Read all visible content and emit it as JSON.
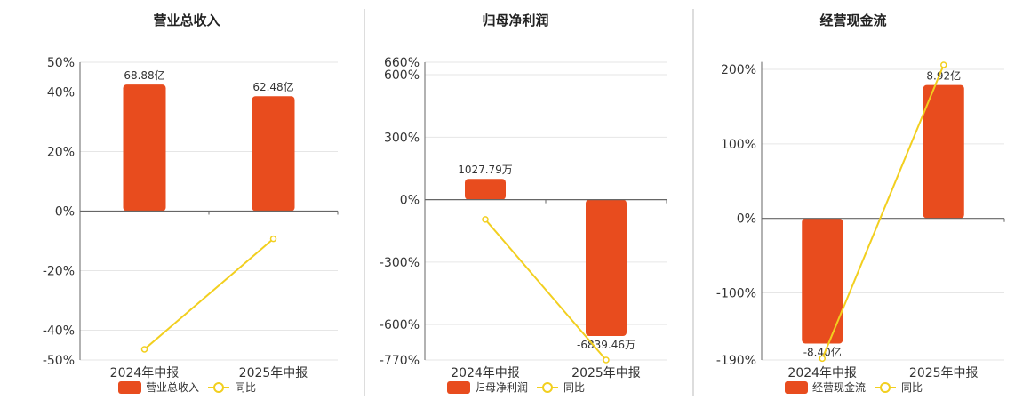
{
  "colors": {
    "bar": "#E84C1E",
    "line": "#F2CF1F",
    "grid": "#E6E6E6",
    "axis": "#666666",
    "divider": "#BBBBBB"
  },
  "chart_data": [
    {
      "type": "bar",
      "title": "营业总收入",
      "categories": [
        "2024年中报",
        "2025年中报"
      ],
      "series": [
        {
          "name": "营业总收入",
          "type": "bar",
          "values": [
            42.5,
            38.6
          ],
          "labels": [
            "68.88亿",
            "62.48亿"
          ]
        },
        {
          "name": "同比",
          "type": "line",
          "values": [
            -46.4,
            -9.3
          ]
        }
      ],
      "yticks": [
        50,
        40,
        20,
        0,
        -20,
        -40,
        -50
      ],
      "ytick_labels": [
        "50%",
        "40%",
        "20%",
        "0%",
        "-20%",
        "-40%",
        "-50%"
      ],
      "ylim": [
        -50,
        50
      ],
      "grid": true,
      "legend": "bottom"
    },
    {
      "type": "bar",
      "title": "归母净利润",
      "categories": [
        "2024年中报",
        "2025年中报"
      ],
      "series": [
        {
          "name": "归母净利润",
          "type": "bar",
          "values": [
            100,
            -655
          ],
          "labels": [
            "1027.79万",
            "-6839.46万"
          ]
        },
        {
          "name": "同比",
          "type": "line",
          "values": [
            -95,
            -770
          ]
        }
      ],
      "yticks": [
        660,
        600,
        300,
        0,
        -300,
        -600,
        -770
      ],
      "ytick_labels": [
        "660%",
        "600%",
        "300%",
        "0%",
        "-300%",
        "-600%",
        "-770%"
      ],
      "ylim": [
        -770,
        660
      ],
      "grid": true,
      "legend": "bottom"
    },
    {
      "type": "bar",
      "title": "经营现金流",
      "categories": [
        "2024年中报",
        "2025年中报"
      ],
      "series": [
        {
          "name": "经营现金流",
          "type": "bar",
          "values": [
            -168,
            179
          ],
          "labels": [
            "-8.40亿",
            "8.92亿"
          ]
        },
        {
          "name": "同比",
          "type": "line",
          "values": [
            -188,
            206
          ]
        }
      ],
      "yticks": [
        200,
        100,
        0,
        -100,
        -190
      ],
      "ytick_labels": [
        "200%",
        "100%",
        "0%",
        "-100%",
        "-190%"
      ],
      "ylim": [
        -190,
        210
      ],
      "grid": true,
      "legend": "bottom"
    }
  ]
}
